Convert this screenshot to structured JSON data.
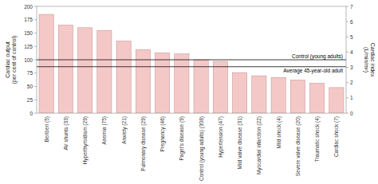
{
  "chart_data": {
    "type": "bar",
    "categories": [
      "Beriberi (5)",
      "AV shunts (33)",
      "Hyperthyroidism (29)",
      "Anemia (75)",
      "Anxiety (21)",
      "Pulmonary disease (29)",
      "Pregnancy (46)",
      "Paget's disease (9)",
      "Control (young adults) (308)",
      "Hypertension (47)",
      "Mild valve disease (31)",
      "Myocardial infarction (22)",
      "Mild shock (4)",
      "Severe valve disease (20)",
      "Traumatic shock (4)",
      "Cardiac shock (7)"
    ],
    "values": [
      185,
      165,
      160,
      155,
      135,
      119,
      113,
      111,
      100,
      97,
      76,
      70,
      67,
      62,
      56,
      48
    ],
    "color": "#f5c8c8",
    "y_label": "Cardiac output\n(per cent of control)",
    "y2_label": "Cardiac index\n(L/min/m²)",
    "ylim": [
      0,
      200
    ],
    "yticks": [
      0,
      25,
      50,
      75,
      100,
      125,
      150,
      175,
      200
    ],
    "y2lim": [
      0,
      7
    ],
    "y2ticks": [
      0,
      1,
      2,
      3,
      4,
      5,
      6,
      7
    ],
    "annotations": [
      {
        "y": 100,
        "text": "Control (young adults)"
      },
      {
        "y": 87,
        "text": "Average 45-year-old adult"
      }
    ],
    "grid": false
  }
}
